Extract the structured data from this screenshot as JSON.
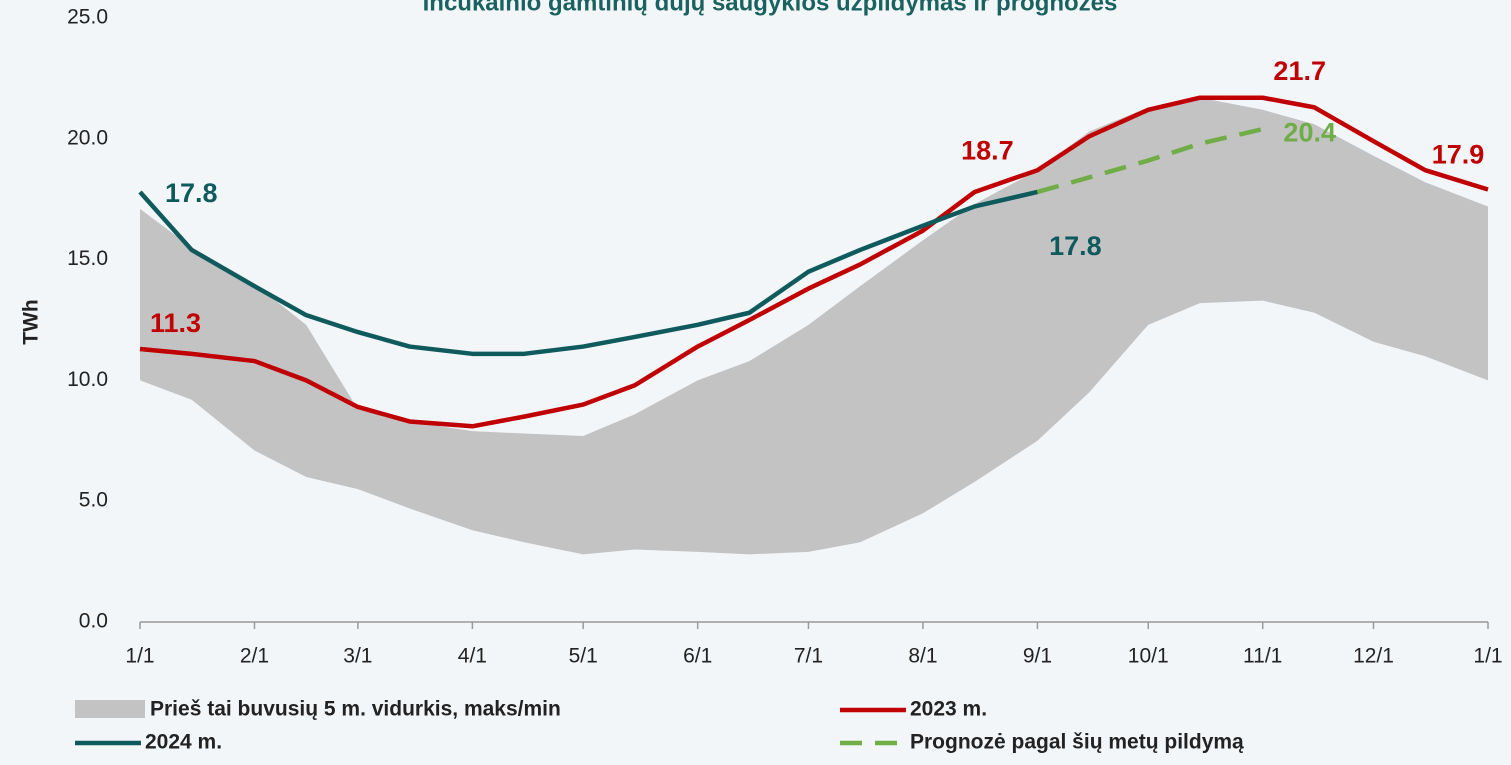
{
  "chart_data": {
    "type": "line",
    "title": "Inčukalnio gamtinių dujų saugyklos užpildymas ir prognozės",
    "y_label": "TWh",
    "x": [
      "1/1",
      "1/15",
      "2/1",
      "2/15",
      "3/1",
      "3/15",
      "4/1",
      "4/15",
      "5/1",
      "5/15",
      "6/1",
      "6/15",
      "7/1",
      "7/15",
      "8/1",
      "8/15",
      "9/1",
      "9/15",
      "10/1",
      "10/15",
      "11/1",
      "11/15",
      "12/1",
      "12/15",
      "1/1"
    ],
    "xticks": [
      "1/1",
      "2/1",
      "3/1",
      "4/1",
      "5/1",
      "6/1",
      "7/1",
      "8/1",
      "9/1",
      "10/1",
      "11/1",
      "12/1",
      "1/1"
    ],
    "ylim": [
      0,
      25
    ],
    "yticks": [
      {
        "value": 0,
        "label": "0.0"
      },
      {
        "value": 5,
        "label": "5.0"
      },
      {
        "value": 10,
        "label": "10.0"
      },
      {
        "value": 15,
        "label": "15.0"
      },
      {
        "value": 20,
        "label": "20.0"
      },
      {
        "value": 25,
        "label": "25.0"
      }
    ],
    "band": {
      "name": "Prieš tai buvusių 5 m. vidurkis, maks/min",
      "color": "#c3c3c3",
      "high": [
        17.1,
        15.5,
        14.0,
        12.3,
        8.8,
        8.3,
        7.9,
        7.8,
        7.7,
        8.6,
        10.0,
        10.8,
        12.3,
        13.9,
        15.8,
        17.3,
        18.7,
        20.3,
        21.3,
        21.7,
        21.2,
        20.6,
        19.3,
        18.2,
        17.2
      ],
      "low": [
        10.0,
        9.2,
        7.1,
        6.0,
        5.5,
        4.7,
        3.8,
        3.3,
        2.8,
        3.0,
        2.9,
        2.8,
        2.9,
        3.3,
        4.5,
        5.8,
        7.5,
        9.5,
        12.3,
        13.2,
        13.3,
        12.8,
        11.6,
        11.0,
        10.0
      ]
    },
    "series": [
      {
        "name": "2023 m.",
        "color": "#c00000",
        "values": [
          11.3,
          11.1,
          10.8,
          10.0,
          8.9,
          8.3,
          8.1,
          8.5,
          9.0,
          9.8,
          11.4,
          12.5,
          13.8,
          14.8,
          16.2,
          17.8,
          18.7,
          20.1,
          21.2,
          21.7,
          21.7,
          21.3,
          19.9,
          18.7,
          17.9
        ],
        "value_labels": [
          "11.3",
          null,
          null,
          null,
          null,
          null,
          null,
          null,
          null,
          null,
          null,
          null,
          null,
          null,
          null,
          null,
          "18.7",
          null,
          null,
          null,
          "21.7",
          null,
          null,
          null,
          "17.9"
        ]
      },
      {
        "name": "2024 m.",
        "color": "#0f5a5c",
        "values": [
          17.8,
          15.4,
          13.9,
          12.7,
          12.0,
          11.4,
          11.1,
          11.1,
          11.4,
          11.8,
          12.3,
          12.8,
          14.5,
          15.4,
          16.4,
          17.2,
          17.8,
          null,
          null,
          null,
          null,
          null,
          null,
          null,
          null
        ],
        "value_labels": [
          "17.8",
          null,
          null,
          null,
          null,
          null,
          null,
          null,
          null,
          null,
          null,
          null,
          null,
          null,
          null,
          null,
          "17.8",
          null,
          null,
          null,
          null,
          null,
          null,
          null,
          null
        ]
      },
      {
        "name": "Prognozė pagal šių metų pildymą",
        "color": "#70ad47",
        "dashed": true,
        "values": [
          null,
          null,
          null,
          null,
          null,
          null,
          null,
          null,
          null,
          null,
          null,
          null,
          null,
          null,
          null,
          null,
          17.8,
          18.4,
          19.1,
          19.8,
          20.4,
          null,
          null,
          null,
          null
        ],
        "value_labels": [
          null,
          null,
          null,
          null,
          null,
          null,
          null,
          null,
          null,
          null,
          null,
          null,
          null,
          null,
          null,
          null,
          null,
          null,
          null,
          null,
          "20.4",
          null,
          null,
          null,
          null
        ]
      }
    ]
  }
}
